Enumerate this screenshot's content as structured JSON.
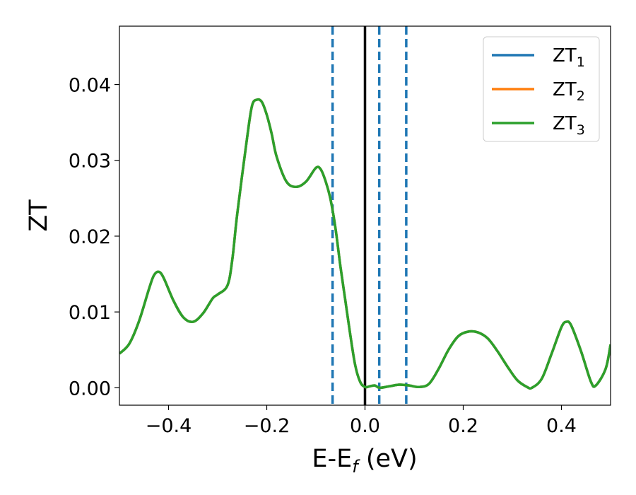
{
  "chart_data": {
    "type": "line",
    "xlabel": "E-E",
    "xlabel_sub": "f",
    "xlabel_unit": " (eV)",
    "ylabel": "ZT",
    "xlim": [
      -0.5,
      0.5
    ],
    "ylim": [
      -0.0023,
      0.0477
    ],
    "grid": false,
    "legend_position": "top-right",
    "x_ticks": [
      -0.4,
      -0.2,
      0.0,
      0.2,
      0.4
    ],
    "x_tick_labels": [
      "−0.4",
      "−0.2",
      "0.0",
      "0.2",
      "0.4"
    ],
    "y_ticks": [
      0.0,
      0.01,
      0.02,
      0.03,
      0.04
    ],
    "y_tick_labels": [
      "0.00",
      "0.01",
      "0.02",
      "0.03",
      "0.04"
    ],
    "vertical_lines": [
      {
        "x": -0.066,
        "style": "dashed",
        "color": "#1f77b4"
      },
      {
        "x": 0.0,
        "style": "solid",
        "color": "#000000"
      },
      {
        "x": 0.029,
        "style": "dashed",
        "color": "#1f77b4"
      },
      {
        "x": 0.084,
        "style": "dashed",
        "color": "#1f77b4"
      }
    ],
    "x": [
      -0.5,
      -0.48,
      -0.46,
      -0.44,
      -0.43,
      -0.42,
      -0.41,
      -0.39,
      -0.37,
      -0.35,
      -0.33,
      -0.31,
      -0.3,
      -0.28,
      -0.27,
      -0.26,
      -0.24,
      -0.23,
      -0.22,
      -0.21,
      -0.2,
      -0.19,
      -0.18,
      -0.16,
      -0.14,
      -0.12,
      -0.1,
      -0.09,
      -0.08,
      -0.07,
      -0.06,
      -0.05,
      -0.04,
      -0.03,
      -0.02,
      -0.01,
      0.0,
      0.01,
      0.02,
      0.03,
      0.05,
      0.07,
      0.09,
      0.11,
      0.13,
      0.15,
      0.17,
      0.19,
      0.21,
      0.23,
      0.25,
      0.27,
      0.29,
      0.31,
      0.33,
      0.34,
      0.36,
      0.38,
      0.4,
      0.41,
      0.42,
      0.44,
      0.46,
      0.47,
      0.49,
      0.5
    ],
    "series": [
      {
        "name": "ZT",
        "name_sub": "1",
        "color": "#1f77b4",
        "values": [
          0.0045,
          0.0058,
          0.0088,
          0.013,
          0.0148,
          0.0153,
          0.0145,
          0.0115,
          0.0093,
          0.0087,
          0.0098,
          0.0118,
          0.0123,
          0.0135,
          0.017,
          0.023,
          0.033,
          0.0372,
          0.038,
          0.0377,
          0.036,
          0.0335,
          0.0305,
          0.0272,
          0.0265,
          0.0272,
          0.029,
          0.0288,
          0.0272,
          0.0248,
          0.021,
          0.016,
          0.0115,
          0.007,
          0.003,
          0.0008,
          0.0001,
          0.0002,
          0.0003,
          0.0,
          0.0002,
          0.0004,
          0.0003,
          0.0001,
          0.0005,
          0.0025,
          0.005,
          0.0068,
          0.0074,
          0.0073,
          0.0065,
          0.0048,
          0.0028,
          0.001,
          0.0001,
          0.0,
          0.0012,
          0.0045,
          0.008,
          0.0087,
          0.0082,
          0.0048,
          0.0008,
          0.0003,
          0.0025,
          0.0057
        ]
      },
      {
        "name": "ZT",
        "name_sub": "2",
        "color": "#ff7f0e",
        "values": [
          0.0045,
          0.0058,
          0.0088,
          0.013,
          0.0148,
          0.0153,
          0.0145,
          0.0115,
          0.0093,
          0.0087,
          0.0098,
          0.0118,
          0.0123,
          0.0135,
          0.017,
          0.023,
          0.033,
          0.0372,
          0.038,
          0.0377,
          0.036,
          0.0335,
          0.0305,
          0.0272,
          0.0265,
          0.0272,
          0.029,
          0.0288,
          0.0272,
          0.0248,
          0.021,
          0.016,
          0.0115,
          0.007,
          0.003,
          0.0008,
          0.0001,
          0.0002,
          0.0003,
          0.0,
          0.0002,
          0.0004,
          0.0003,
          0.0001,
          0.0005,
          0.0025,
          0.005,
          0.0068,
          0.0074,
          0.0073,
          0.0065,
          0.0048,
          0.0028,
          0.001,
          0.0001,
          0.0,
          0.0012,
          0.0045,
          0.008,
          0.0087,
          0.0082,
          0.0048,
          0.0008,
          0.0003,
          0.0025,
          0.0057
        ]
      },
      {
        "name": "ZT",
        "name_sub": "3",
        "color": "#2ca02c",
        "values": [
          0.0045,
          0.0058,
          0.0088,
          0.013,
          0.0148,
          0.0153,
          0.0145,
          0.0115,
          0.0093,
          0.0087,
          0.0098,
          0.0118,
          0.0123,
          0.0135,
          0.017,
          0.023,
          0.033,
          0.0372,
          0.038,
          0.0377,
          0.036,
          0.0335,
          0.0305,
          0.0272,
          0.0265,
          0.0272,
          0.029,
          0.0288,
          0.0272,
          0.0248,
          0.021,
          0.016,
          0.0115,
          0.007,
          0.003,
          0.0008,
          0.0001,
          0.0002,
          0.0003,
          0.0,
          0.0002,
          0.0004,
          0.0003,
          0.0001,
          0.0005,
          0.0025,
          0.005,
          0.0068,
          0.0074,
          0.0073,
          0.0065,
          0.0048,
          0.0028,
          0.001,
          0.0001,
          0.0,
          0.0012,
          0.0045,
          0.008,
          0.0087,
          0.0082,
          0.0048,
          0.0008,
          0.0003,
          0.0025,
          0.0057
        ]
      }
    ]
  }
}
